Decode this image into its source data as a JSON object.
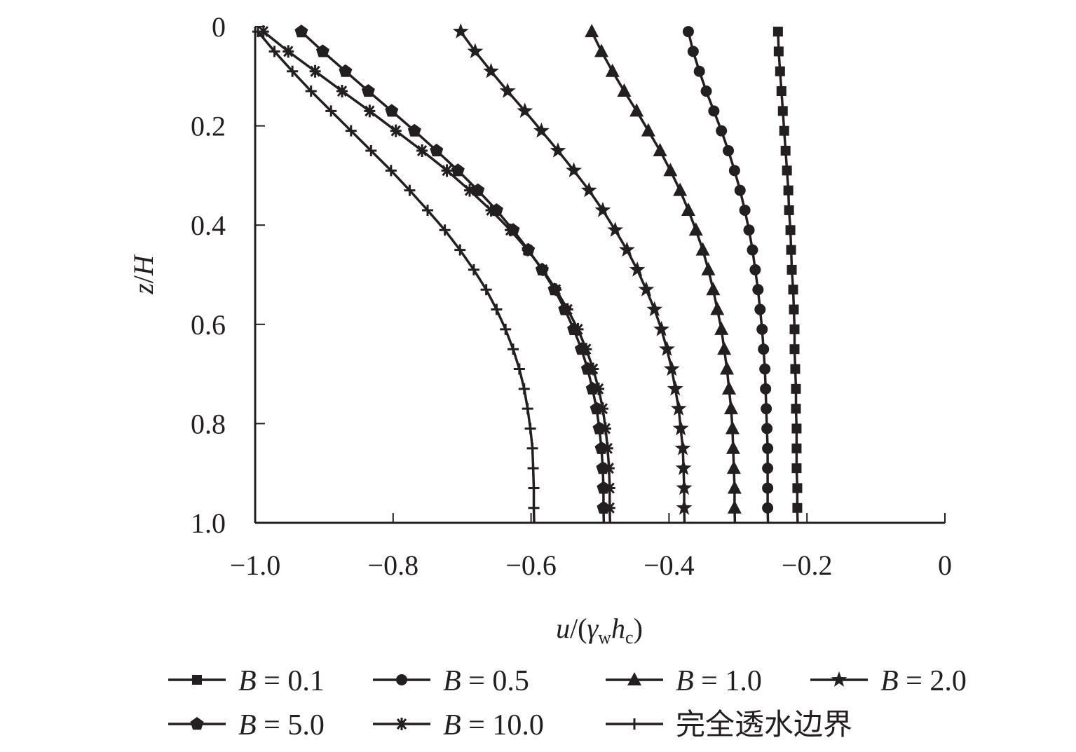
{
  "chart_data": {
    "type": "line",
    "xlabel": {
      "base": "u",
      "open": "/(",
      "gamma": "γ",
      "gamma_sub": "w",
      "h": "h",
      "h_sub": "c",
      "close": ")"
    },
    "ylabel": {
      "base": "z",
      "slash": "/",
      "H": "H"
    },
    "xlim": [
      -1.0,
      0
    ],
    "ylim": [
      0,
      1.0
    ],
    "y_inverted": true,
    "x_ticks": [
      -1.0,
      -0.8,
      -0.6,
      -0.4,
      -0.2,
      0
    ],
    "x_tick_labels": [
      "−1.0",
      "−0.8",
      "−0.6",
      "−0.4",
      "−0.2",
      "0"
    ],
    "y_ticks": [
      0,
      0.2,
      0.4,
      0.6,
      0.8,
      1.0
    ],
    "y_tick_labels": [
      "0",
      "0.2",
      "0.4",
      "0.6",
      "0.8",
      "1.0"
    ],
    "grid": false,
    "legend_position": "bottom",
    "y": [
      0.01,
      0.05,
      0.09,
      0.13,
      0.17,
      0.21,
      0.25,
      0.29,
      0.33,
      0.37,
      0.41,
      0.45,
      0.49,
      0.53,
      0.57,
      0.61,
      0.65,
      0.69,
      0.73,
      0.77,
      0.81,
      0.85,
      0.89,
      0.93,
      0.97
    ],
    "series": [
      {
        "name": "B = 0.1",
        "marker": "square",
        "x": [
          -0.242,
          -0.241,
          -0.239,
          -0.237,
          -0.235,
          -0.233,
          -0.231,
          -0.229,
          -0.227,
          -0.226,
          -0.224,
          -0.223,
          -0.222,
          -0.22,
          -0.219,
          -0.218,
          -0.218,
          -0.217,
          -0.216,
          -0.216,
          -0.215,
          -0.215,
          -0.215,
          -0.214,
          -0.214
        ]
      },
      {
        "name": "B = 0.5",
        "marker": "circle",
        "x": [
          -0.372,
          -0.365,
          -0.356,
          -0.346,
          -0.335,
          -0.324,
          -0.314,
          -0.305,
          -0.297,
          -0.29,
          -0.284,
          -0.279,
          -0.275,
          -0.271,
          -0.268,
          -0.265,
          -0.263,
          -0.261,
          -0.26,
          -0.259,
          -0.258,
          -0.257,
          -0.257,
          -0.257,
          -0.257
        ]
      },
      {
        "name": "B = 1.0",
        "marker": "triangle",
        "x": [
          -0.512,
          -0.498,
          -0.482,
          -0.465,
          -0.447,
          -0.43,
          -0.413,
          -0.398,
          -0.384,
          -0.372,
          -0.361,
          -0.351,
          -0.343,
          -0.336,
          -0.33,
          -0.324,
          -0.32,
          -0.316,
          -0.313,
          -0.31,
          -0.308,
          -0.307,
          -0.306,
          -0.305,
          -0.305
        ]
      },
      {
        "name": "B = 2.0",
        "marker": "star",
        "x": [
          -0.702,
          -0.681,
          -0.658,
          -0.634,
          -0.609,
          -0.585,
          -0.561,
          -0.538,
          -0.516,
          -0.496,
          -0.478,
          -0.461,
          -0.446,
          -0.433,
          -0.421,
          -0.411,
          -0.403,
          -0.396,
          -0.391,
          -0.386,
          -0.383,
          -0.38,
          -0.379,
          -0.378,
          -0.378
        ]
      },
      {
        "name": "B = 5.0",
        "marker": "pentagon",
        "x": [
          -0.933,
          -0.902,
          -0.869,
          -0.836,
          -0.802,
          -0.769,
          -0.737,
          -0.706,
          -0.677,
          -0.65,
          -0.626,
          -0.604,
          -0.584,
          -0.566,
          -0.551,
          -0.538,
          -0.527,
          -0.518,
          -0.511,
          -0.505,
          -0.501,
          -0.498,
          -0.496,
          -0.495,
          -0.495
        ]
      },
      {
        "name": "B = 10.0",
        "marker": "asterisk",
        "x": [
          -0.988,
          -0.952,
          -0.913,
          -0.874,
          -0.834,
          -0.796,
          -0.758,
          -0.722,
          -0.689,
          -0.658,
          -0.63,
          -0.605,
          -0.583,
          -0.564,
          -0.547,
          -0.532,
          -0.52,
          -0.51,
          -0.502,
          -0.496,
          -0.492,
          -0.489,
          -0.487,
          -0.486,
          -0.486
        ]
      },
      {
        "name": "完全透水边界",
        "marker": "plus",
        "x": [
          -0.996,
          -0.972,
          -0.946,
          -0.919,
          -0.89,
          -0.861,
          -0.832,
          -0.803,
          -0.776,
          -0.75,
          -0.725,
          -0.703,
          -0.683,
          -0.665,
          -0.65,
          -0.637,
          -0.626,
          -0.617,
          -0.61,
          -0.605,
          -0.601,
          -0.598,
          -0.597,
          -0.596,
          -0.596
        ]
      }
    ]
  }
}
